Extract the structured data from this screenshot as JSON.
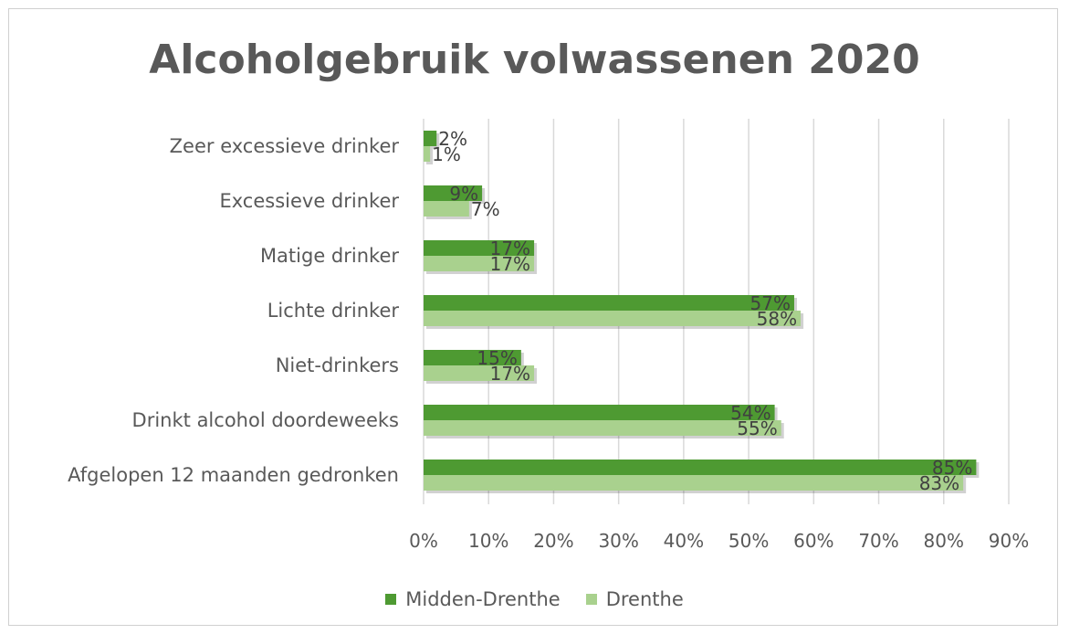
{
  "chart_data": {
    "type": "bar",
    "orientation": "horizontal",
    "title": "Alcoholgebruik volwassenen 2020",
    "categories": [
      "Zeer excessieve drinker",
      "Excessieve drinker",
      "Matige drinker",
      "Lichte drinker",
      "Niet-drinkers",
      "Drinkt alcohol doordeweeks",
      "Afgelopen 12 maanden gedronken"
    ],
    "series": [
      {
        "name": "Midden-Drenthe",
        "color": "#4e9a32",
        "values": [
          2,
          9,
          17,
          57,
          15,
          54,
          85
        ],
        "labels": [
          "2%",
          "9%",
          "17%",
          "57%",
          "15%",
          "54%",
          "85%"
        ]
      },
      {
        "name": "Drenthe",
        "color": "#a9d18e",
        "values": [
          1,
          7,
          17,
          58,
          17,
          55,
          83
        ],
        "labels": [
          "1%",
          "7%",
          "17%",
          "58%",
          "17%",
          "55%",
          "83%"
        ]
      }
    ],
    "xlim": [
      0,
      90
    ],
    "x_ticks": [
      "0%",
      "10%",
      "20%",
      "30%",
      "40%",
      "50%",
      "60%",
      "70%",
      "80%",
      "90%"
    ],
    "grid": true,
    "legend_position": "bottom"
  }
}
